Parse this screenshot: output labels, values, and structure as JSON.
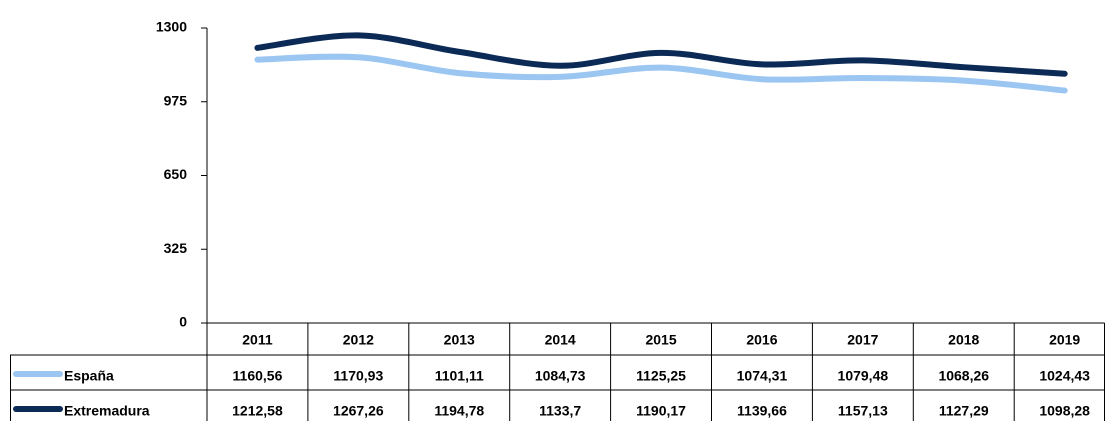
{
  "chart_data": {
    "type": "line",
    "categories": [
      "2011",
      "2012",
      "2013",
      "2014",
      "2015",
      "2016",
      "2017",
      "2018",
      "2019"
    ],
    "series": [
      {
        "name": "España",
        "color": "#9cc6f2",
        "values": [
          1160.56,
          1170.93,
          1101.11,
          1084.73,
          1125.25,
          1074.31,
          1079.48,
          1068.26,
          1024.43
        ],
        "value_labels": [
          "1160,56",
          "1170,93",
          "1101,11",
          "1084,73",
          "1125,25",
          "1074,31",
          "1079,48",
          "1068,26",
          "1024,43"
        ]
      },
      {
        "name": "Extremadura",
        "color": "#0c2a56",
        "values": [
          1212.58,
          1267.26,
          1194.78,
          1133.7,
          1190.17,
          1139.66,
          1157.13,
          1127.29,
          1098.28
        ],
        "value_labels": [
          "1212,58",
          "1267,26",
          "1194,78",
          "1133,7",
          "1190,17",
          "1139,66",
          "1157,13",
          "1127,29",
          "1098,28"
        ]
      }
    ],
    "ylim": [
      0,
      1300
    ],
    "yticks": [
      0,
      325,
      650,
      975,
      1300
    ]
  }
}
